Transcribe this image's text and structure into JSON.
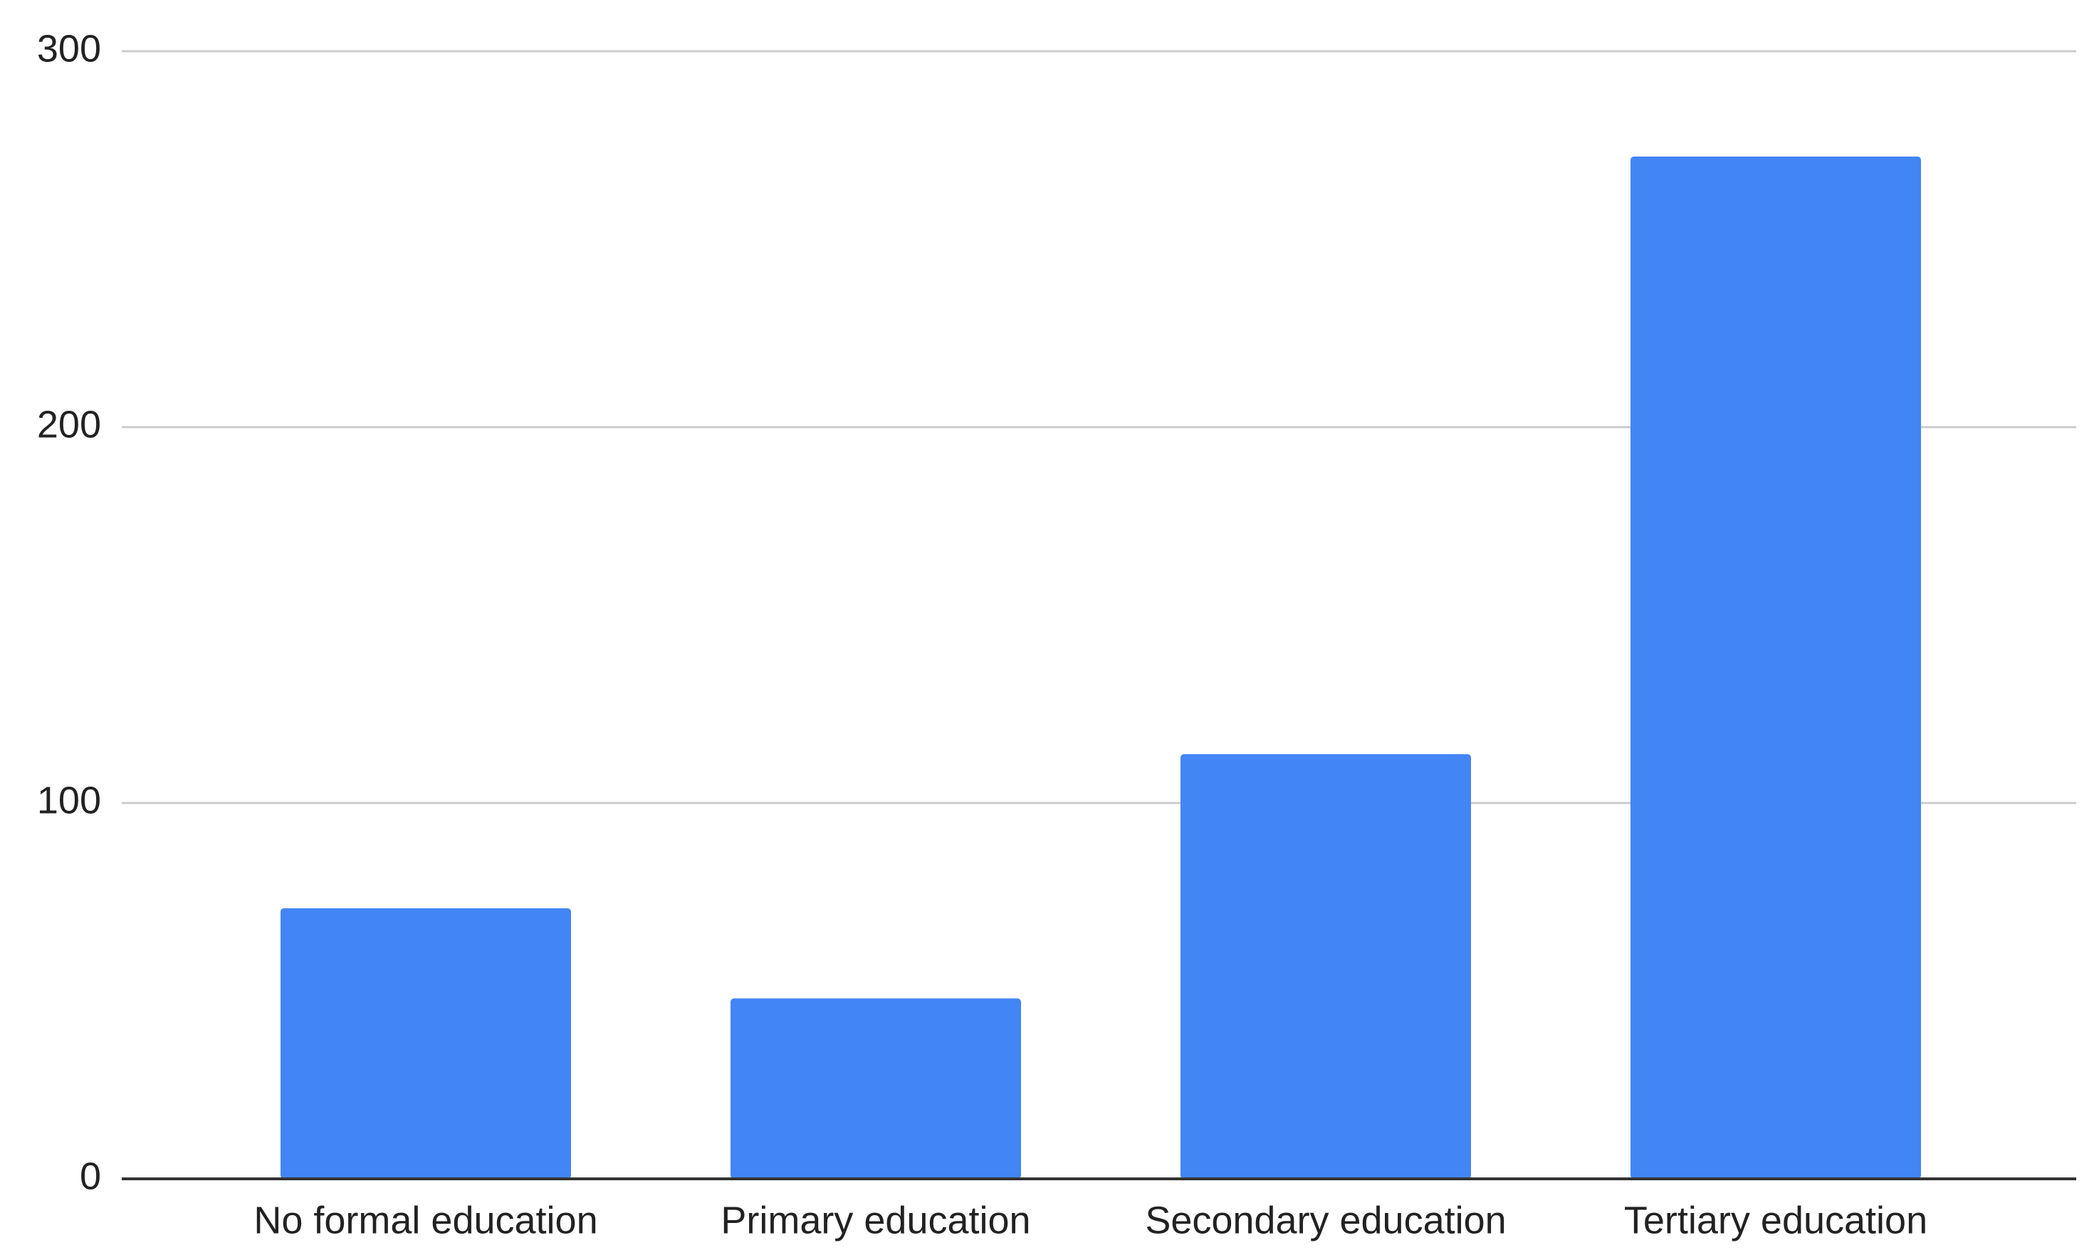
{
  "chart_data": {
    "type": "bar",
    "categories": [
      "No formal education",
      "Primary education",
      "Secondary education",
      "Tertiary education"
    ],
    "values": [
      72,
      48,
      113,
      272
    ],
    "color": "#4285f4",
    "ylim": [
      0,
      300
    ],
    "yticks": [
      0,
      100,
      200,
      300
    ],
    "grid": true
  }
}
